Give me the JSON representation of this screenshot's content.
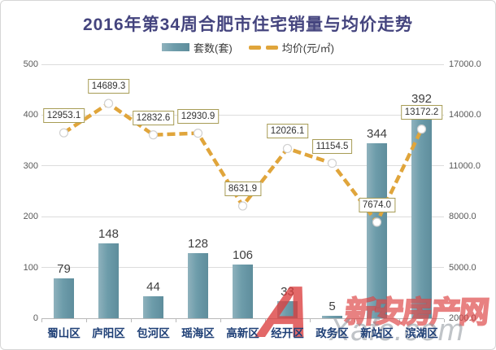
{
  "title": "2016年第34周合肥市住宅销量与均价走势",
  "legend": {
    "bar_label": "套数(套)",
    "line_label": "均价(元/㎡)"
  },
  "chart_data": {
    "type": "bar+line",
    "title": "2016年第34周合肥市住宅销量与均价走势",
    "categories": [
      "蜀山区",
      "庐阳区",
      "包河区",
      "瑶海区",
      "高新区",
      "经开区",
      "政务区",
      "新站区",
      "滨湖区"
    ],
    "series": [
      {
        "name": "套数(套)",
        "type": "bar",
        "axis": "left",
        "color": "#6D9CAA",
        "values": [
          79,
          148,
          44,
          128,
          106,
          33,
          5,
          344,
          392
        ]
      },
      {
        "name": "均价(元/㎡)",
        "type": "line",
        "axis": "right",
        "color": "#E0A53B",
        "values": [
          12953.1,
          14689.3,
          12832.6,
          12930.9,
          8631.9,
          12026.1,
          11154.5,
          7674.0,
          13172.2
        ],
        "point_labels": [
          "12953.1",
          "14689.3",
          "12832.6",
          "12930.9",
          "8631.9",
          "12026.1",
          "11154.5",
          "7674.0",
          "13172.2"
        ]
      }
    ],
    "left_axis": {
      "min": 0,
      "max": 500,
      "step": 100,
      "tick_labels": [
        "500",
        "400",
        "300",
        "200",
        "100",
        "0"
      ]
    },
    "right_axis": {
      "min": 2000,
      "max": 17000,
      "step": 3000,
      "tick_labels": [
        "17000.0",
        "14000.0",
        "11000.0",
        "8000.0",
        "5000.0",
        "2000.0"
      ]
    },
    "grid": true,
    "legend_position": "top"
  },
  "colors": {
    "title": "#44447E",
    "bar": "#6D9CAA",
    "line": "#E0A53B",
    "category_label": "#1E3F76",
    "point_label_border": "#A79C55",
    "watermark_red": "#DB3E3E"
  },
  "watermark": {
    "logo_letter": "A",
    "site_name": "新安房产网",
    "site_domain": "Xafc.com"
  }
}
